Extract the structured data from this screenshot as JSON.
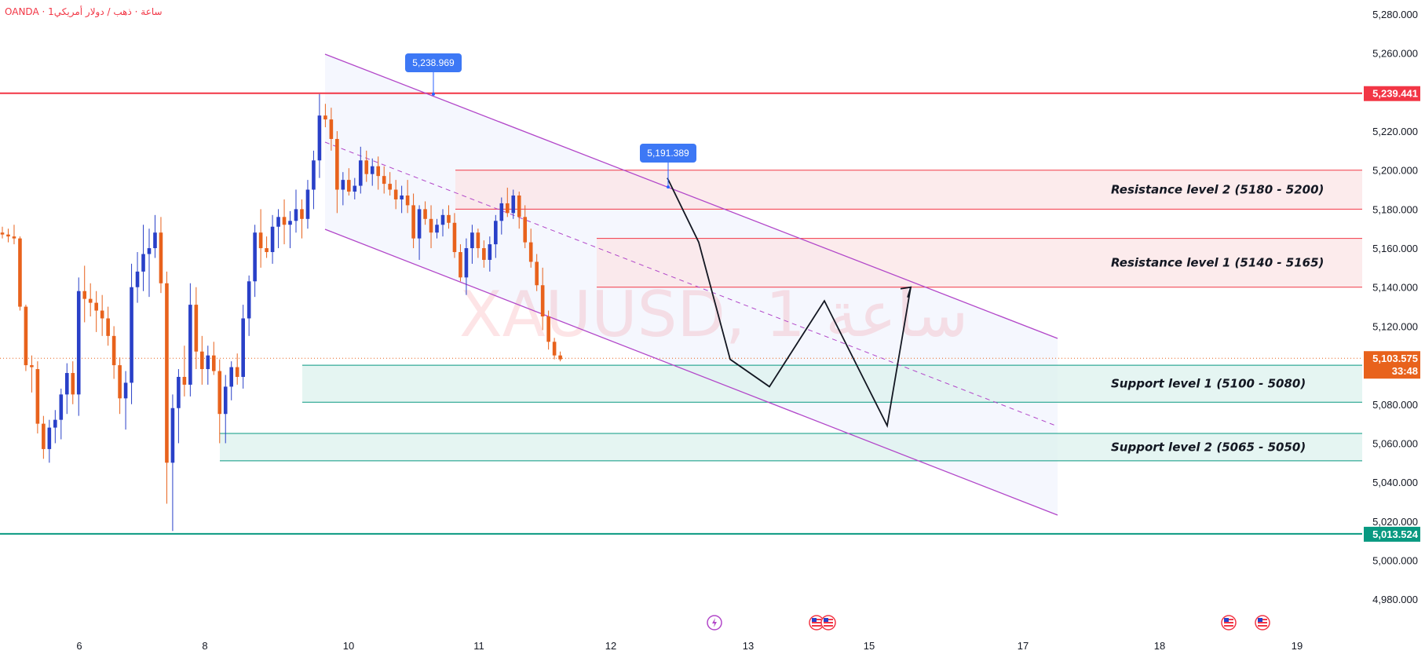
{
  "header": {
    "symbol_line": "OANDA · 1ساعة · ذهب / دولار أمريكي"
  },
  "watermark": "XAUUSD, 1 ساعة",
  "colors": {
    "up": "#2940c8",
    "down": "#e8621c",
    "resistance": "#f23645",
    "support": "#089981",
    "channel": "#b247c9"
  },
  "price_badges": {
    "resistance_line": "5,239.441",
    "support_line": "5,013.524",
    "current": "5,103.575",
    "countdown": "33:48"
  },
  "callouts": {
    "high": "5,238.969",
    "lower_high": "5,191.389"
  },
  "chart_data": {
    "type": "candlestick",
    "title": "XAUUSD, 1 ساعة",
    "x_labels": [
      "6",
      "8",
      "10",
      "11",
      "12",
      "13",
      "15",
      "17",
      "18",
      "19"
    ],
    "y_ticks": [
      4980,
      5000,
      5020,
      5040,
      5060,
      5080,
      5100,
      5120,
      5140,
      5160,
      5180,
      5200,
      5220,
      5240,
      5260,
      5280
    ],
    "ylim": [
      4972,
      5285
    ],
    "grid": false,
    "horizontal_lines": [
      {
        "label": "5,239.441",
        "value": 5239.441,
        "color": "#f23645"
      },
      {
        "label": "5,013.524",
        "value": 5013.524,
        "color": "#089981"
      }
    ],
    "zones": [
      {
        "label": "Resistance level 2 (5180 - 5200)",
        "low": 5180,
        "high": 5200,
        "kind": "resistance"
      },
      {
        "label": "Resistance level 1 (5140 - 5165)",
        "low": 5140,
        "high": 5165,
        "kind": "resistance"
      },
      {
        "label": "Support level 1 (5100 - 5080)",
        "low": 5081,
        "high": 5100,
        "kind": "support"
      },
      {
        "label": "Support level 2 (5065 - 5050)",
        "low": 5051,
        "high": 5065,
        "kind": "support"
      }
    ],
    "current_price": 5103.575,
    "annotations": [
      {
        "label": "5,238.969",
        "value": 5238.969
      },
      {
        "label": "5,191.389",
        "value": 5191.389
      }
    ],
    "projection_path": [
      5196,
      5163,
      5103,
      5089,
      5133,
      5069,
      5140
    ],
    "candles": [
      [
        5168,
        5171,
        5165,
        5167
      ],
      [
        5167,
        5170,
        5163,
        5166
      ],
      [
        5166,
        5172,
        5162,
        5165
      ],
      [
        5165,
        5166,
        5128,
        5130
      ],
      [
        5130,
        5131,
        5097,
        5100
      ],
      [
        5100,
        5105,
        5086,
        5099
      ],
      [
        5098,
        5102,
        5065,
        5070
      ],
      [
        5070,
        5074,
        5052,
        5057
      ],
      [
        5057,
        5072,
        5050,
        5068
      ],
      [
        5068,
        5077,
        5060,
        5072
      ],
      [
        5072,
        5088,
        5062,
        5085
      ],
      [
        5085,
        5101,
        5075,
        5096
      ],
      [
        5096,
        5102,
        5080,
        5085
      ],
      [
        5085,
        5145,
        5074,
        5138
      ],
      [
        5138,
        5151,
        5122,
        5134
      ],
      [
        5134,
        5142,
        5125,
        5132
      ],
      [
        5132,
        5138,
        5117,
        5128
      ],
      [
        5128,
        5136,
        5115,
        5124
      ],
      [
        5124,
        5130,
        5110,
        5115
      ],
      [
        5115,
        5120,
        5093,
        5100
      ],
      [
        5100,
        5104,
        5075,
        5083
      ],
      [
        5083,
        5097,
        5067,
        5091
      ],
      [
        5091,
        5152,
        5080,
        5140
      ],
      [
        5140,
        5158,
        5132,
        5148
      ],
      [
        5148,
        5172,
        5138,
        5157
      ],
      [
        5157,
        5170,
        5135,
        5160
      ],
      [
        5160,
        5177,
        5155,
        5168
      ],
      [
        5168,
        5176,
        5137,
        5142
      ],
      [
        5142,
        5148,
        5029,
        5050
      ],
      [
        5050,
        5085,
        5015,
        5078
      ],
      [
        5078,
        5098,
        5060,
        5094
      ],
      [
        5094,
        5110,
        5084,
        5090
      ],
      [
        5090,
        5142,
        5084,
        5131
      ],
      [
        5131,
        5140,
        5098,
        5107
      ],
      [
        5107,
        5115,
        5090,
        5098
      ],
      [
        5098,
        5110,
        5090,
        5105
      ],
      [
        5105,
        5112,
        5095,
        5097
      ],
      [
        5097,
        5103,
        5060,
        5075
      ],
      [
        5075,
        5095,
        5060,
        5089
      ],
      [
        5089,
        5102,
        5082,
        5099
      ],
      [
        5099,
        5106,
        5090,
        5094
      ],
      [
        5094,
        5131,
        5088,
        5124
      ],
      [
        5124,
        5146,
        5115,
        5143
      ],
      [
        5143,
        5172,
        5135,
        5168
      ],
      [
        5168,
        5180,
        5150,
        5160
      ],
      [
        5160,
        5166,
        5155,
        5158
      ],
      [
        5158,
        5177,
        5152,
        5171
      ],
      [
        5171,
        5180,
        5160,
        5176
      ],
      [
        5176,
        5185,
        5162,
        5172
      ],
      [
        5172,
        5179,
        5160,
        5174
      ],
      [
        5174,
        5190,
        5168,
        5180
      ],
      [
        5180,
        5185,
        5165,
        5175
      ],
      [
        5175,
        5195,
        5170,
        5190
      ],
      [
        5190,
        5210,
        5180,
        5205
      ],
      [
        5205,
        5239,
        5196,
        5228
      ],
      [
        5228,
        5234,
        5222,
        5226
      ],
      [
        5226,
        5232,
        5210,
        5216
      ],
      [
        5216,
        5220,
        5178,
        5190
      ],
      [
        5190,
        5199,
        5182,
        5195
      ],
      [
        5195,
        5201,
        5187,
        5189
      ],
      [
        5189,
        5196,
        5185,
        5192
      ],
      [
        5192,
        5212,
        5188,
        5205
      ],
      [
        5205,
        5210,
        5194,
        5198
      ],
      [
        5198,
        5206,
        5192,
        5202
      ],
      [
        5202,
        5207,
        5190,
        5197
      ],
      [
        5197,
        5202,
        5188,
        5193
      ],
      [
        5193,
        5199,
        5187,
        5190
      ],
      [
        5190,
        5195,
        5180,
        5185
      ],
      [
        5185,
        5192,
        5178,
        5187
      ],
      [
        5187,
        5195,
        5178,
        5182
      ],
      [
        5182,
        5188,
        5160,
        5165
      ],
      [
        5165,
        5182,
        5154,
        5180
      ],
      [
        5180,
        5184,
        5172,
        5175
      ],
      [
        5175,
        5182,
        5160,
        5168
      ],
      [
        5168,
        5175,
        5165,
        5172
      ],
      [
        5172,
        5180,
        5166,
        5177
      ],
      [
        5177,
        5182,
        5170,
        5173
      ],
      [
        5173,
        5178,
        5155,
        5158
      ],
      [
        5158,
        5162,
        5143,
        5145
      ],
      [
        5145,
        5165,
        5136,
        5160
      ],
      [
        5160,
        5172,
        5152,
        5168
      ],
      [
        5168,
        5170,
        5155,
        5160
      ],
      [
        5160,
        5164,
        5150,
        5154
      ],
      [
        5154,
        5166,
        5148,
        5162
      ],
      [
        5162,
        5177,
        5155,
        5174
      ],
      [
        5174,
        5186,
        5167,
        5183
      ],
      [
        5183,
        5191,
        5176,
        5178
      ],
      [
        5178,
        5190,
        5175,
        5187
      ],
      [
        5187,
        5189,
        5170,
        5176
      ],
      [
        5176,
        5182,
        5160,
        5163
      ],
      [
        5163,
        5170,
        5150,
        5153
      ],
      [
        5153,
        5157,
        5138,
        5141
      ],
      [
        5141,
        5150,
        5118,
        5125
      ],
      [
        5125,
        5128,
        5108,
        5112
      ],
      [
        5112,
        5114,
        5103,
        5105
      ],
      [
        5105,
        5107,
        5102,
        5103
      ]
    ]
  }
}
